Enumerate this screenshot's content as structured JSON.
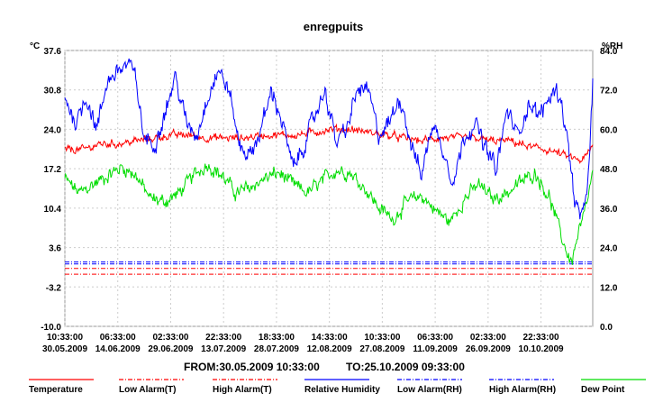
{
  "chart_data": {
    "type": "line",
    "title": "enregpuits",
    "y_left_unit": "°C",
    "y_right_unit": "%RH",
    "y_left_ticks": [
      "37.6",
      "30.8",
      "24.0",
      "17.2",
      "10.4",
      "3.6",
      "-3.2",
      "-10.0"
    ],
    "y_right_ticks": [
      "84.0",
      "72.0",
      "60.0",
      "48.0",
      "36.0",
      "24.0",
      "12.0",
      "0.0"
    ],
    "y_left_range": [
      -10.0,
      37.6
    ],
    "y_right_range": [
      0.0,
      84.0
    ],
    "x_ticks": [
      {
        "time": "10:33:00",
        "date": "30.05.2009"
      },
      {
        "time": "06:33:00",
        "date": "14.06.2009"
      },
      {
        "time": "02:33:00",
        "date": "29.06.2009"
      },
      {
        "time": "22:33:00",
        "date": "13.07.2009"
      },
      {
        "time": "18:33:00",
        "date": "28.07.2009"
      },
      {
        "time": "14:33:00",
        "date": "12.08.2009"
      },
      {
        "time": "10:33:00",
        "date": "27.08.2009"
      },
      {
        "time": "06:33:00",
        "date": "11.09.2009"
      },
      {
        "time": "02:33:00",
        "date": "26.09.2009"
      },
      {
        "time": "22:33:00",
        "date": "10.10.2009"
      }
    ],
    "x_range_days": [
      0,
      148
    ],
    "x_tick_spacing_days": 14.833,
    "from_label": "FROM:30.05.2009 10:33:00",
    "to_label": "TO:25.10.2009 09:33:00",
    "series": [
      {
        "name": "Temperature",
        "axis": "left",
        "color": "#ff0000",
        "style": "noisy",
        "noise": 1.0,
        "x": [
          0,
          5,
          10,
          15,
          20,
          25,
          30,
          35,
          40,
          45,
          50,
          55,
          60,
          65,
          70,
          75,
          80,
          85,
          90,
          95,
          100,
          105,
          110,
          115,
          120,
          125,
          130,
          135,
          140,
          145,
          148
        ],
        "y": [
          20.5,
          20.5,
          21.5,
          21.5,
          22.0,
          22.5,
          23.0,
          23.0,
          22.5,
          22.5,
          22.5,
          23.0,
          23.0,
          23.0,
          23.5,
          24.0,
          24.0,
          23.5,
          23.0,
          22.5,
          22.0,
          22.5,
          22.5,
          22.5,
          22.0,
          22.0,
          21.0,
          20.5,
          19.5,
          18.5,
          21.0
        ]
      },
      {
        "name": "Low Alarm(T)",
        "axis": "left",
        "color": "#ff0000",
        "style": "dashdot",
        "x": [
          0,
          148
        ],
        "y": [
          -1.0,
          -1.0
        ]
      },
      {
        "name": "High Alarm(T)",
        "axis": "left",
        "color": "#ff0000",
        "style": "dashdot",
        "x": [
          0,
          148
        ],
        "y": [
          0.0,
          0.0
        ]
      },
      {
        "name": "Relative Humidity",
        "axis": "right",
        "color": "#0000ff",
        "style": "noisy",
        "noise": 4.0,
        "x": [
          0,
          3,
          6,
          9,
          12,
          15,
          18,
          20,
          22,
          25,
          28,
          31,
          34,
          37,
          40,
          43,
          46,
          49,
          52,
          55,
          58,
          61,
          64,
          67,
          70,
          73,
          76,
          79,
          82,
          85,
          88,
          91,
          94,
          97,
          100,
          103,
          106,
          109,
          112,
          115,
          118,
          121,
          124,
          127,
          130,
          133,
          135,
          137,
          139,
          141,
          143,
          145,
          147,
          148
        ],
        "y": [
          70,
          62,
          70,
          60,
          75,
          78,
          80,
          75,
          58,
          55,
          65,
          76,
          62,
          58,
          70,
          78,
          72,
          55,
          52,
          60,
          72,
          62,
          48,
          55,
          64,
          72,
          56,
          60,
          72,
          72,
          58,
          62,
          70,
          56,
          46,
          62,
          54,
          44,
          58,
          62,
          54,
          48,
          66,
          58,
          68,
          64,
          68,
          72,
          70,
          56,
          38,
          32,
          48,
          74
        ]
      },
      {
        "name": "Low Alarm(RH)",
        "axis": "right",
        "color": "#0000ff",
        "style": "dashdot",
        "x": [
          0,
          148
        ],
        "y": [
          19.0,
          19.0
        ]
      },
      {
        "name": "High Alarm(RH)",
        "axis": "right",
        "color": "#0000ff",
        "style": "dashdot",
        "x": [
          0,
          148
        ],
        "y": [
          19.6,
          19.6
        ]
      },
      {
        "name": "Dew Point",
        "axis": "left",
        "color": "#00dd00",
        "style": "noisy",
        "noise": 1.8,
        "x": [
          0,
          4,
          8,
          12,
          16,
          20,
          24,
          28,
          32,
          36,
          40,
          44,
          48,
          52,
          56,
          60,
          64,
          68,
          72,
          76,
          80,
          84,
          88,
          92,
          96,
          100,
          104,
          108,
          112,
          116,
          120,
          124,
          128,
          132,
          136,
          138,
          140,
          142,
          144,
          146,
          148
        ],
        "y": [
          15.5,
          13.0,
          14.5,
          16.0,
          17.5,
          16.0,
          12.0,
          11.5,
          13.0,
          16.0,
          18.0,
          16.0,
          13.0,
          14.0,
          15.5,
          16.5,
          14.5,
          13.0,
          15.0,
          17.0,
          16.5,
          14.0,
          10.5,
          8.5,
          11.5,
          12.5,
          10.0,
          8.0,
          12.0,
          14.5,
          12.0,
          13.0,
          15.0,
          16.5,
          12.0,
          8.0,
          4.0,
          1.0,
          6.0,
          10.0,
          16.5
        ]
      }
    ]
  },
  "legend": [
    {
      "label": "Temperature",
      "color": "#ff0000",
      "style": "solid"
    },
    {
      "label": "Low Alarm(T)",
      "color": "#ff0000",
      "style": "dashdot"
    },
    {
      "label": "High Alarm(T)",
      "color": "#ff0000",
      "style": "dashdot"
    },
    {
      "label": "Relative Humidity",
      "color": "#0000ff",
      "style": "solid"
    },
    {
      "label": "Low Alarm(RH)",
      "color": "#0000ff",
      "style": "dashdot"
    },
    {
      "label": "High Alarm(RH)",
      "color": "#0000ff",
      "style": "dashdot"
    },
    {
      "label": "Dew Point",
      "color": "#00dd00",
      "style": "solid"
    }
  ]
}
